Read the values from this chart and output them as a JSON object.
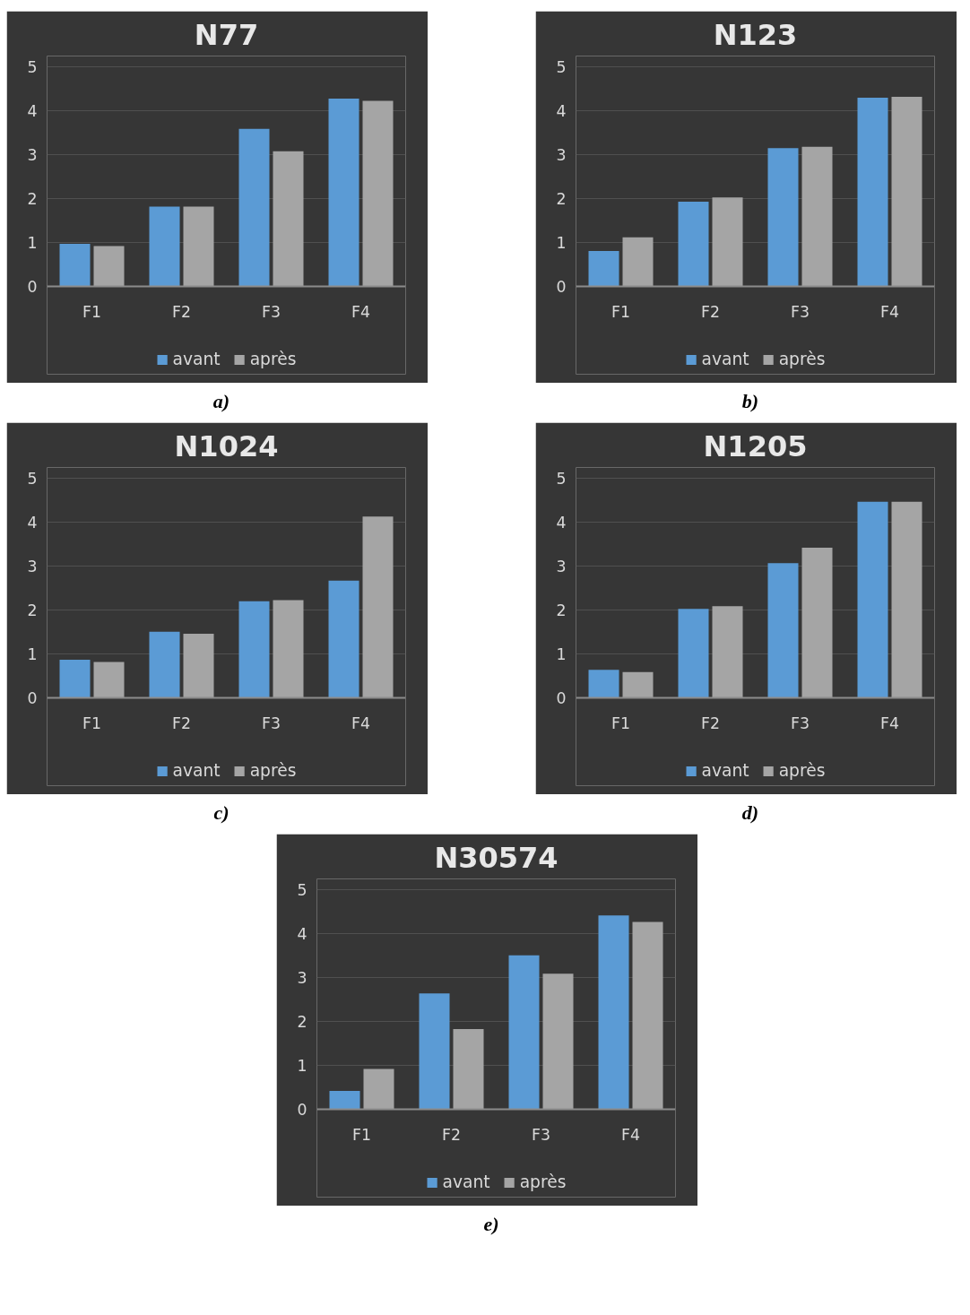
{
  "chart_data": [
    {
      "type": "bar",
      "title": "N77",
      "categories": [
        "F1",
        "F2",
        "F3",
        "F4"
      ],
      "ylim": [
        0,
        5
      ],
      "yticks": [
        0,
        1,
        2,
        3,
        4,
        5
      ],
      "grid": "y",
      "legend": "bottom",
      "annotations": [
        "a)"
      ],
      "series": [
        {
          "name": "avant",
          "color": "#5b9bd5",
          "values": [
            0.97,
            1.82,
            3.59,
            4.28
          ]
        },
        {
          "name": "après",
          "color": "#a5a5a5",
          "values": [
            0.92,
            1.82,
            3.08,
            4.23
          ]
        }
      ]
    },
    {
      "type": "bar",
      "title": "N123",
      "categories": [
        "F1",
        "F2",
        "F3",
        "F4"
      ],
      "ylim": [
        0,
        5
      ],
      "yticks": [
        0,
        1,
        2,
        3,
        4,
        5
      ],
      "grid": "y",
      "legend": "bottom",
      "annotations": [
        "b)"
      ],
      "series": [
        {
          "name": "avant",
          "color": "#5b9bd5",
          "values": [
            0.81,
            1.93,
            3.15,
            4.3
          ]
        },
        {
          "name": "après",
          "color": "#a5a5a5",
          "values": [
            1.12,
            2.03,
            3.18,
            4.32
          ]
        }
      ]
    },
    {
      "type": "bar",
      "title": "N1024",
      "categories": [
        "F1",
        "F2",
        "F3",
        "F4"
      ],
      "ylim": [
        0,
        5
      ],
      "yticks": [
        0,
        1,
        2,
        3,
        4,
        5
      ],
      "grid": "y",
      "legend": "bottom",
      "annotations": [
        "c)"
      ],
      "series": [
        {
          "name": "avant",
          "color": "#5b9bd5",
          "values": [
            0.87,
            1.51,
            2.2,
            2.67
          ]
        },
        {
          "name": "après",
          "color": "#a5a5a5",
          "values": [
            0.82,
            1.46,
            2.23,
            4.13
          ]
        }
      ]
    },
    {
      "type": "bar",
      "title": "N1205",
      "categories": [
        "F1",
        "F2",
        "F3",
        "F4"
      ],
      "ylim": [
        0,
        5
      ],
      "yticks": [
        0,
        1,
        2,
        3,
        4,
        5
      ],
      "grid": "y",
      "legend": "bottom",
      "annotations": [
        "d)"
      ],
      "series": [
        {
          "name": "avant",
          "color": "#5b9bd5",
          "values": [
            0.64,
            2.03,
            3.07,
            4.47
          ]
        },
        {
          "name": "après",
          "color": "#a5a5a5",
          "values": [
            0.59,
            2.09,
            3.42,
            4.47
          ]
        }
      ]
    },
    {
      "type": "bar",
      "title": "N30574",
      "categories": [
        "F1",
        "F2",
        "F3",
        "F4"
      ],
      "ylim": [
        0,
        5
      ],
      "yticks": [
        0,
        1,
        2,
        3,
        4,
        5
      ],
      "grid": "y",
      "legend": "bottom",
      "annotations": [
        "e)"
      ],
      "series": [
        {
          "name": "avant",
          "color": "#5b9bd5",
          "values": [
            0.42,
            2.64,
            3.51,
            4.42
          ]
        },
        {
          "name": "après",
          "color": "#a5a5a5",
          "values": [
            0.92,
            1.83,
            3.09,
            4.27
          ]
        }
      ]
    }
  ]
}
